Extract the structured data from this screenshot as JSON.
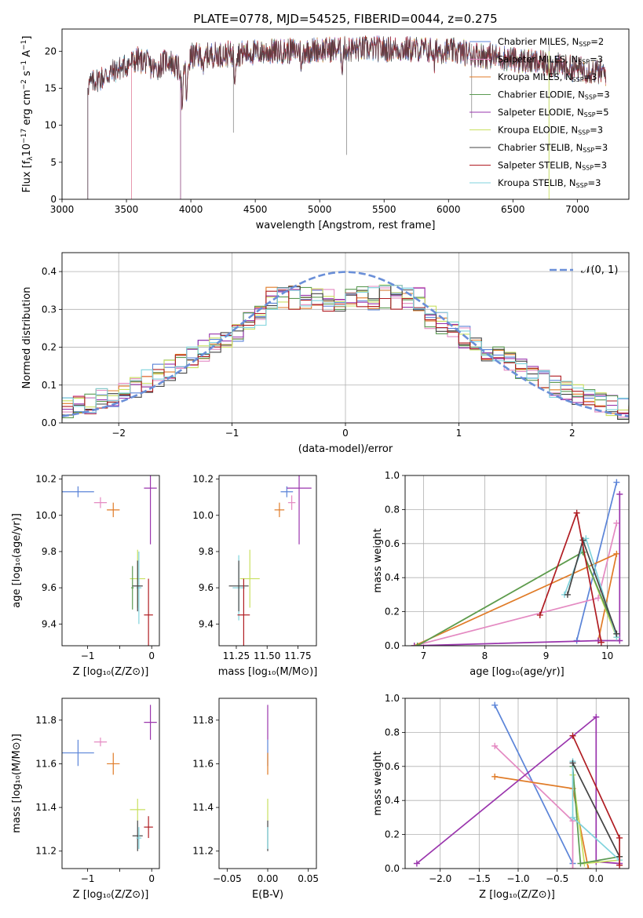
{
  "figure": {
    "title": "PLATE=0778, MJD=54525, FIBERID=0044, z=0.275"
  },
  "colors": {
    "Chabrier MILES": "#5b84d8",
    "Salpeter MILES": "#e48ac2",
    "Kroupa MILES": "#e07b27",
    "Chabrier ELODIE": "#5b9a52",
    "Salpeter ELODIE": "#9a35ad",
    "Kroupa ELODIE": "#c9e060",
    "Chabrier STELIB": "#444444",
    "Salpeter STELIB": "#b01c22",
    "Kroupa STELIB": "#7fd3dc",
    "normal": "#6a8fd8"
  },
  "chart_data": [
    {
      "id": "spectrum",
      "type": "line",
      "xlabel": "wavelength [Angstrom, rest frame]",
      "xlim": [
        3000,
        7400
      ],
      "ylim": [
        0,
        23
      ],
      "xticks": [
        "3000",
        "3500",
        "4000",
        "4500",
        "5000",
        "5500",
        "6000",
        "6500",
        "7000"
      ],
      "yticks": [
        "0",
        "5",
        "10",
        "15",
        "20"
      ],
      "series_starts": [
        3200,
        3540,
        3540,
        3920,
        3920,
        3920,
        3200,
        3200,
        3200
      ],
      "series_end": 7220,
      "legend": [
        {
          "name": "Chabrier MILES",
          "nssp": "2"
        },
        {
          "name": "Salpeter MILES",
          "nssp": "3"
        },
        {
          "name": "Kroupa MILES",
          "nssp": "3"
        },
        {
          "name": "Chabrier ELODIE",
          "nssp": "3"
        },
        {
          "name": "Salpeter ELODIE",
          "nssp": "5"
        },
        {
          "name": "Kroupa ELODIE",
          "nssp": "3"
        },
        {
          "name": "Chabrier STELIB",
          "nssp": "3"
        },
        {
          "name": "Salpeter STELIB",
          "nssp": "3"
        },
        {
          "name": "Kroupa STELIB",
          "nssp": "3"
        }
      ]
    },
    {
      "id": "residuals",
      "type": "area",
      "xlabel": "(data-model)/error",
      "ylabel": "Normed distribution",
      "xlim": [
        -2.5,
        2.5
      ],
      "ylim": [
        0,
        0.45
      ],
      "xticks": [
        -2,
        -1,
        0,
        1,
        2
      ],
      "xtick_labels": [
        "−2",
        "−1",
        "0",
        "1",
        "2"
      ],
      "yticks": [
        0,
        0.1,
        0.2,
        0.3,
        0.4
      ],
      "ytick_labels": [
        "0.0",
        "0.1",
        "0.2",
        "0.3",
        "0.4"
      ],
      "bin_width": 0.1,
      "normal_label": "𝒩(0, 1)",
      "grid": true
    },
    {
      "id": "age-vs-Z",
      "type": "scatter",
      "xlabel": "Z [log₁₀(Z/Z⊙)]",
      "ylabel": "age  [log₁₀(age/yr)]",
      "xlim": [
        -1.4,
        0.12
      ],
      "ylim": [
        9.28,
        10.22
      ],
      "xticks": [
        -1,
        -0.5,
        0
      ],
      "xtick_labels": [
        "−1",
        "",
        "0"
      ],
      "yticks": [
        9.4,
        9.6,
        9.8,
        10.0,
        10.2
      ],
      "ytick_labels": [
        "9.4",
        "9.6",
        "9.8",
        "10.0",
        "10.2"
      ],
      "points": [
        {
          "series": "Chabrier MILES",
          "x": -1.15,
          "y": 10.13,
          "xerr": 0.25,
          "yerr": 0.03
        },
        {
          "series": "Salpeter MILES",
          "x": -0.8,
          "y": 10.07,
          "xerr": 0.1,
          "yerr": 0.03
        },
        {
          "series": "Kroupa MILES",
          "x": -0.6,
          "y": 10.03,
          "xerr": 0.1,
          "yerr": 0.04
        },
        {
          "series": "Salpeter ELODIE",
          "x": -0.02,
          "y": 10.15,
          "xerr": 0.1,
          "yerr": 0.31
        },
        {
          "series": "Kroupa ELODIE",
          "x": -0.22,
          "y": 9.65,
          "xerr": 0.12,
          "yerr": 0.16
        },
        {
          "series": "Chabrier ELODIE",
          "x": -0.3,
          "y": 9.6,
          "xerr": 0.02,
          "yerr": 0.12
        },
        {
          "series": "Kroupa STELIB",
          "x": -0.2,
          "y": 9.6,
          "xerr": 0.04,
          "yerr": 0.2
        },
        {
          "series": "Chabrier STELIB",
          "x": -0.22,
          "y": 9.61,
          "xerr": 0.08,
          "yerr": 0.14
        },
        {
          "series": "Salpeter STELIB",
          "x": -0.05,
          "y": 9.45,
          "xerr": 0.07,
          "yerr": 0.2
        }
      ]
    },
    {
      "id": "age-vs-mass",
      "type": "scatter",
      "xlabel": "mass [log₁₀(M/M⊙)]",
      "xlim": [
        11.11,
        11.9
      ],
      "ylim": [
        9.28,
        10.22
      ],
      "xticks": [
        11.25,
        11.5,
        11.75
      ],
      "xtick_labels": [
        "11.25",
        "11.50",
        "11.75"
      ],
      "yticks": [
        9.4,
        9.6,
        9.8,
        10.0,
        10.2
      ],
      "ytick_labels": [
        "9.4",
        "9.6",
        "9.8",
        "10.0",
        "10.2"
      ],
      "points": [
        {
          "series": "Chabrier MILES",
          "x": 11.66,
          "y": 10.13,
          "xerr": 0.05,
          "yerr": 0.03
        },
        {
          "series": "Salpeter MILES",
          "x": 11.7,
          "y": 10.07,
          "xerr": 0.03,
          "yerr": 0.04
        },
        {
          "series": "Kroupa MILES",
          "x": 11.6,
          "y": 10.03,
          "xerr": 0.04,
          "yerr": 0.04
        },
        {
          "series": "Salpeter ELODIE",
          "x": 11.76,
          "y": 10.15,
          "xerr": 0.1,
          "yerr": 0.31
        },
        {
          "series": "Kroupa ELODIE",
          "x": 11.36,
          "y": 9.65,
          "xerr": 0.08,
          "yerr": 0.16
        },
        {
          "series": "Kroupa STELIB",
          "x": 11.27,
          "y": 9.6,
          "xerr": 0.05,
          "yerr": 0.18
        },
        {
          "series": "Chabrier STELIB",
          "x": 11.27,
          "y": 9.61,
          "xerr": 0.08,
          "yerr": 0.14
        },
        {
          "series": "Salpeter STELIB",
          "x": 11.31,
          "y": 9.45,
          "xerr": 0.05,
          "yerr": 0.2
        }
      ]
    },
    {
      "id": "weight-vs-age",
      "type": "line",
      "xlabel": "age  [log₁₀(age/yr)]",
      "ylabel": "mass weight",
      "xlim": [
        6.7,
        10.35
      ],
      "ylim": [
        0,
        1.0
      ],
      "xticks": [
        7,
        8,
        9,
        10
      ],
      "xtick_labels": [
        "7",
        "8",
        "9",
        "10"
      ],
      "yticks": [
        0,
        0.2,
        0.4,
        0.6,
        0.8,
        1.0
      ],
      "ytick_labels": [
        "0.0",
        "0.2",
        "0.4",
        "0.6",
        "0.8",
        "1.0"
      ],
      "grid": true,
      "series": [
        {
          "name": "Chabrier MILES",
          "points": [
            [
              9.5,
              0.03
            ],
            [
              10.15,
              0.96
            ]
          ]
        },
        {
          "name": "Salpeter MILES",
          "points": [
            [
              6.85,
              0.0
            ],
            [
              9.85,
              0.28
            ],
            [
              10.15,
              0.72
            ]
          ]
        },
        {
          "name": "Kroupa MILES",
          "points": [
            [
              6.85,
              0.0
            ],
            [
              10.15,
              0.54
            ],
            [
              9.85,
              0.03
            ]
          ]
        },
        {
          "name": "Salpeter ELODIE",
          "points": [
            [
              6.85,
              0.0
            ],
            [
              9.85,
              0.03
            ],
            [
              10.2,
              0.03
            ],
            [
              10.2,
              0.89
            ]
          ]
        },
        {
          "name": "Kroupa ELODIE",
          "points": [
            [
              6.9,
              0.0
            ],
            [
              9.6,
              0.55
            ],
            [
              10.15,
              0.05
            ]
          ]
        },
        {
          "name": "Chabrier ELODIE",
          "points": [
            [
              6.9,
              0.0
            ],
            [
              9.6,
              0.55
            ],
            [
              10.15,
              0.07
            ]
          ]
        },
        {
          "name": "Kroupa STELIB",
          "points": [
            [
              9.3,
              0.3
            ],
            [
              9.65,
              0.63
            ],
            [
              10.15,
              0.05
            ]
          ]
        },
        {
          "name": "Chabrier STELIB",
          "points": [
            [
              9.35,
              0.3
            ],
            [
              9.6,
              0.62
            ],
            [
              10.15,
              0.07
            ]
          ]
        },
        {
          "name": "Salpeter STELIB",
          "points": [
            [
              8.9,
              0.18
            ],
            [
              9.5,
              0.78
            ],
            [
              9.9,
              0.02
            ]
          ]
        }
      ]
    },
    {
      "id": "mass-vs-Z",
      "type": "scatter",
      "xlabel": "Z [log₁₀(Z/Z⊙)]",
      "ylabel": "mass [log₁₀(M/M⊙)]",
      "xlim": [
        -1.4,
        0.12
      ],
      "ylim": [
        11.12,
        11.9
      ],
      "xticks": [
        -1,
        -0.5,
        0
      ],
      "xtick_labels": [
        "−1",
        "",
        "0"
      ],
      "yticks": [
        11.2,
        11.4,
        11.6,
        11.8
      ],
      "ytick_labels": [
        "11.2",
        "11.4",
        "11.6",
        "11.8"
      ],
      "points": [
        {
          "series": "Chabrier MILES",
          "x": -1.15,
          "y": 11.65,
          "xerr": 0.25,
          "yerr": 0.06
        },
        {
          "series": "Salpeter MILES",
          "x": -0.8,
          "y": 11.7,
          "xerr": 0.1,
          "yerr": 0.02
        },
        {
          "series": "Kroupa MILES",
          "x": -0.6,
          "y": 11.6,
          "xerr": 0.1,
          "yerr": 0.05
        },
        {
          "series": "Salpeter ELODIE",
          "x": -0.02,
          "y": 11.79,
          "xerr": 0.1,
          "yerr": 0.08
        },
        {
          "series": "Kroupa ELODIE",
          "x": -0.22,
          "y": 11.39,
          "xerr": 0.12,
          "yerr": 0.05
        },
        {
          "series": "Chabrier STELIB",
          "x": -0.22,
          "y": 11.27,
          "xerr": 0.08,
          "yerr": 0.07
        },
        {
          "series": "Kroupa STELIB",
          "x": -0.2,
          "y": 11.26,
          "xerr": 0.04,
          "yerr": 0.05
        },
        {
          "series": "Salpeter STELIB",
          "x": -0.05,
          "y": 11.31,
          "xerr": 0.07,
          "yerr": 0.05
        }
      ]
    },
    {
      "id": "mass-vs-ebv",
      "type": "scatter",
      "xlabel": "E(B-V)",
      "xlim": [
        -0.06,
        0.06
      ],
      "ylim": [
        11.12,
        11.9
      ],
      "xticks": [
        -0.05,
        0,
        0.05
      ],
      "xtick_labels": [
        "−0.05",
        "0.00",
        "0.05"
      ],
      "yticks": [
        11.2,
        11.4,
        11.6,
        11.8
      ],
      "ytick_labels": [
        "11.2",
        "11.4",
        "11.6",
        "11.8"
      ],
      "points": [
        {
          "series": "Salpeter ELODIE",
          "x": 0,
          "y": 11.79,
          "xerr": 0,
          "yerr": 0.08
        },
        {
          "series": "Chabrier MILES",
          "x": 0,
          "y": 11.65,
          "xerr": 0,
          "yerr": 0.06
        },
        {
          "series": "Kroupa MILES",
          "x": 0,
          "y": 11.6,
          "xerr": 0,
          "yerr": 0.05
        },
        {
          "series": "Kroupa ELODIE",
          "x": 0,
          "y": 11.39,
          "xerr": 0,
          "yerr": 0.05
        },
        {
          "series": "Chabrier STELIB",
          "x": 0,
          "y": 11.27,
          "xerr": 0,
          "yerr": 0.07
        },
        {
          "series": "Kroupa STELIB",
          "x": 0,
          "y": 11.26,
          "xerr": 0,
          "yerr": 0.05
        }
      ]
    },
    {
      "id": "weight-vs-Z",
      "type": "line",
      "xlabel": "Z [log₁₀(Z/Z⊙)]",
      "ylabel": "mass weight",
      "xlim": [
        -2.45,
        0.42
      ],
      "ylim": [
        0,
        1.0
      ],
      "xticks": [
        -2.0,
        -1.5,
        -1.0,
        -0.5,
        0.0
      ],
      "xtick_labels": [
        "−2.0",
        "−1.5",
        "−1.0",
        "−0.5",
        "0.0"
      ],
      "yticks": [
        0,
        0.2,
        0.4,
        0.6,
        0.8,
        1.0
      ],
      "ytick_labels": [
        "0.0",
        "0.2",
        "0.4",
        "0.6",
        "0.8",
        "1.0"
      ],
      "grid": true,
      "series": [
        {
          "name": "Chabrier MILES",
          "points": [
            [
              -1.3,
              0.96
            ],
            [
              -0.3,
              0.03
            ]
          ]
        },
        {
          "name": "Salpeter MILES",
          "points": [
            [
              -1.3,
              0.72
            ],
            [
              -0.3,
              0.28
            ],
            [
              -0.3,
              0.0
            ]
          ]
        },
        {
          "name": "Kroupa MILES",
          "points": [
            [
              -1.3,
              0.54
            ],
            [
              -0.3,
              0.47
            ],
            [
              -0.1,
              0.0
            ]
          ]
        },
        {
          "name": "Salpeter ELODIE",
          "points": [
            [
              -2.3,
              0.03
            ],
            [
              0.0,
              0.89
            ],
            [
              0.0,
              0.04
            ],
            [
              0.3,
              0.03
            ]
          ]
        },
        {
          "name": "Kroupa ELODIE",
          "points": [
            [
              -0.3,
              0.55
            ],
            [
              -0.15,
              0.03
            ],
            [
              0.3,
              0.05
            ]
          ]
        },
        {
          "name": "Chabrier ELODIE",
          "points": [
            [
              -0.3,
              0.6
            ],
            [
              -0.2,
              0.03
            ],
            [
              0.3,
              0.07
            ]
          ]
        },
        {
          "name": "Kroupa STELIB",
          "points": [
            [
              -0.3,
              0.63
            ],
            [
              -0.3,
              0.3
            ],
            [
              0.3,
              0.05
            ]
          ]
        },
        {
          "name": "Chabrier STELIB",
          "points": [
            [
              -0.3,
              0.62
            ],
            [
              0.3,
              0.07
            ]
          ]
        },
        {
          "name": "Salpeter STELIB",
          "points": [
            [
              -0.3,
              0.78
            ],
            [
              0.3,
              0.18
            ],
            [
              0.3,
              0.02
            ]
          ]
        }
      ]
    }
  ]
}
